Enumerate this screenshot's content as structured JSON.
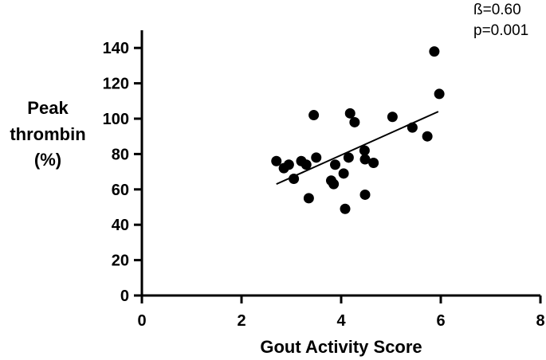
{
  "chart_data": {
    "type": "scatter",
    "title": "",
    "xlabel": "Gout Activity Score",
    "ylabel": [
      "Peak",
      "thrombin",
      "(%)"
    ],
    "xlim": [
      0,
      8
    ],
    "ylim": [
      0,
      150
    ],
    "xticks": [
      0,
      2,
      4,
      6,
      8
    ],
    "yticks": [
      0,
      20,
      40,
      60,
      80,
      100,
      120,
      140
    ],
    "grid": false,
    "legend": "none",
    "colors": {
      "points": "#000000",
      "line": "#000000",
      "axes": "#000000"
    },
    "annotations": [
      "ß=0.60",
      "p=0.001"
    ],
    "points": [
      {
        "x": 2.7,
        "y": 76
      },
      {
        "x": 2.85,
        "y": 72
      },
      {
        "x": 2.95,
        "y": 74
      },
      {
        "x": 3.05,
        "y": 66
      },
      {
        "x": 3.2,
        "y": 76
      },
      {
        "x": 3.3,
        "y": 74
      },
      {
        "x": 3.35,
        "y": 55
      },
      {
        "x": 3.45,
        "y": 102
      },
      {
        "x": 3.5,
        "y": 78
      },
      {
        "x": 3.8,
        "y": 65
      },
      {
        "x": 3.85,
        "y": 63
      },
      {
        "x": 3.88,
        "y": 74
      },
      {
        "x": 4.05,
        "y": 69
      },
      {
        "x": 4.08,
        "y": 49
      },
      {
        "x": 4.15,
        "y": 78
      },
      {
        "x": 4.18,
        "y": 103
      },
      {
        "x": 4.27,
        "y": 98
      },
      {
        "x": 4.47,
        "y": 82
      },
      {
        "x": 4.48,
        "y": 77
      },
      {
        "x": 4.48,
        "y": 57
      },
      {
        "x": 4.65,
        "y": 75
      },
      {
        "x": 5.03,
        "y": 101
      },
      {
        "x": 5.43,
        "y": 95
      },
      {
        "x": 5.73,
        "y": 90
      },
      {
        "x": 5.87,
        "y": 138
      },
      {
        "x": 5.97,
        "y": 114
      }
    ],
    "trendline": {
      "x": [
        2.7,
        5.95
      ],
      "y": [
        63,
        104
      ]
    }
  }
}
